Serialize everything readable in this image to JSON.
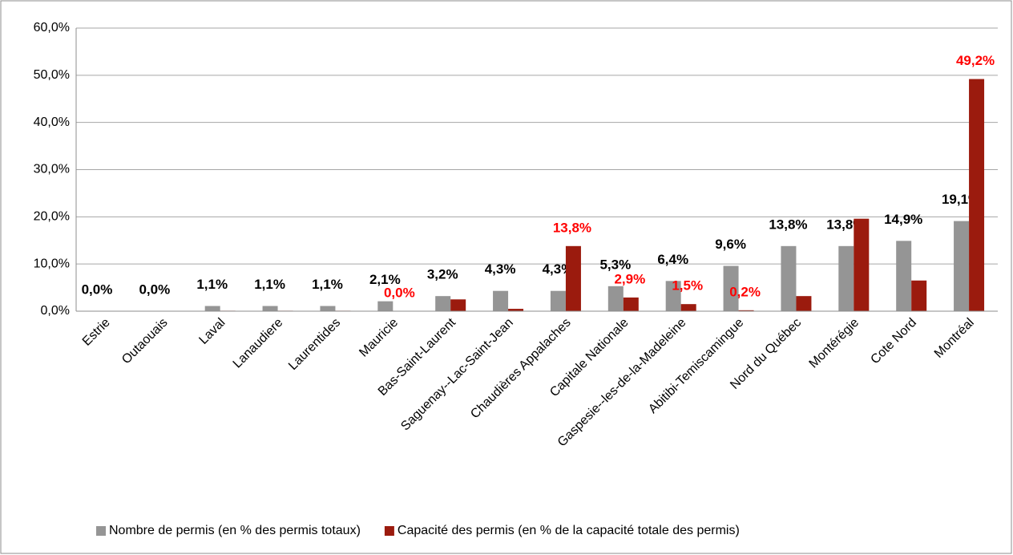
{
  "chart_data": {
    "type": "bar",
    "categories": [
      "Estrie",
      "Outaouais",
      "Laval",
      "Lanaudiere",
      "Laurentides",
      "Mauricie",
      "Bas-Saint-Laurent",
      "Saguenay--Lac-Saint-Jean",
      "Chaudières Appalaches",
      "Capitale Nationale",
      "Gaspesie--les-de-la-Madeleine",
      "Abitibi-Temiscamingue",
      "Nord du Québec",
      "Montérégie",
      "Cote Nord",
      "Montréal"
    ],
    "series": [
      {
        "name": "Nombre de permis (en % des permis totaux)",
        "color": "#959595",
        "label_color": "#000000",
        "values": [
          0,
          0,
          1.1,
          1.1,
          1.1,
          2.1,
          3.2,
          4.3,
          4.3,
          5.3,
          6.4,
          9.6,
          13.8,
          13.8,
          14.9,
          19.1
        ],
        "value_labels": [
          "0,0%",
          "0,0%",
          "1,1%",
          "1,1%",
          "1,1%",
          "2,1%",
          "3,2%",
          "4,3%",
          "4,3%",
          "5,3%",
          "6,4%",
          "9,6%",
          "13,8%",
          "13,8%",
          "14,9%",
          "19,1%"
        ]
      },
      {
        "name": "Capacité des permis (en % de la capacité totale des permis)",
        "color": "#9b1b0e",
        "label_color": "#ff0000",
        "values": [
          0,
          0,
          0.1,
          0.1,
          0.1,
          0,
          2.5,
          0.5,
          13.8,
          2.9,
          1.5,
          0.2,
          3.2,
          19.6,
          6.5,
          49.2
        ],
        "value_labels": [
          null,
          null,
          null,
          null,
          null,
          "0,0%",
          null,
          null,
          "13,8%",
          "2,9%",
          "1,5%",
          "0,2%",
          null,
          null,
          null,
          "49,2%"
        ]
      }
    ],
    "ylim": [
      0,
      60
    ],
    "yticks": [
      {
        "value": 0,
        "label": "0,0%"
      },
      {
        "value": 10,
        "label": "10,0%"
      },
      {
        "value": 20,
        "label": "20,0%"
      },
      {
        "value": 30,
        "label": "30,0%"
      },
      {
        "value": 40,
        "label": "40,0%"
      },
      {
        "value": 50,
        "label": "50,0%"
      },
      {
        "value": 60,
        "label": "60,0%"
      }
    ],
    "grid": true,
    "legend": "bottom"
  }
}
